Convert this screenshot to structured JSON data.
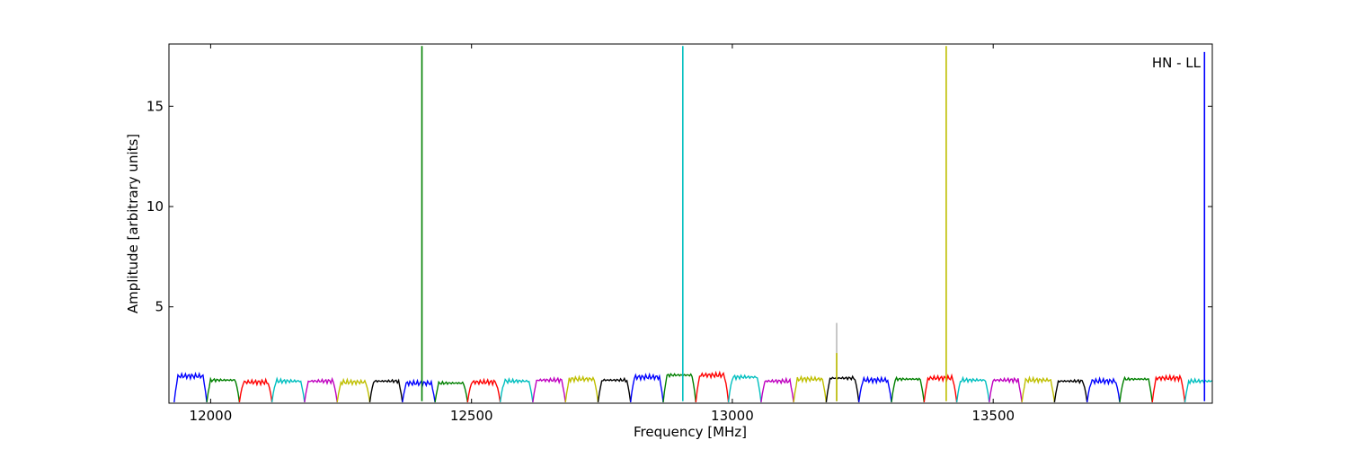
{
  "chart_data": {
    "type": "line",
    "title": "",
    "xlabel": "Frequency [MHz]",
    "ylabel": "Amplitude [arbitrary units]",
    "xlim": [
      11920,
      13920
    ],
    "ylim": [
      0.2,
      18.1
    ],
    "xticks": [
      12000,
      12500,
      13000,
      13500
    ],
    "yticks": [
      5,
      10,
      15
    ],
    "grid": false,
    "legend": "none",
    "annotation": "HN - LL",
    "band_width_mhz": 62.5,
    "band_colors": [
      "#0000ff",
      "#008000",
      "#ff0000",
      "#00bfbf",
      "#bf00bf",
      "#bfbf00",
      "#000000"
    ],
    "band_peaks": [
      1.55,
      1.35,
      1.25,
      1.3,
      1.3,
      1.25,
      1.3,
      1.2,
      1.2,
      1.25,
      1.3,
      1.35,
      1.4,
      1.35,
      1.5,
      1.6,
      1.6,
      1.5,
      1.3,
      1.4,
      1.45,
      1.35,
      1.4,
      1.45,
      1.35,
      1.35,
      1.35,
      1.3,
      1.3,
      1.4,
      1.45,
      1.3,
      1.45,
      1.5,
      1.4,
      1.3,
      1.35,
      1.35,
      1.4,
      1.3,
      1.3,
      1.35,
      1.3,
      1.35,
      1.4,
      1.5,
      1.5,
      1.45,
      1.45,
      1.45,
      1.4,
      1.4,
      1.35,
      1.35,
      1.3,
      1.35,
      1.3,
      1.35,
      1.4,
      1.45,
      1.45,
      1.45,
      1.35,
      1.35,
      1.4,
      1.4,
      1.4,
      1.3,
      1.35,
      1.5,
      1.35,
      1.3,
      1.35,
      1.5
    ],
    "spikes": [
      {
        "x": 12405,
        "y": 18.0,
        "color": "#008000"
      },
      {
        "x": 12905,
        "y": 18.0,
        "color": "#00bfbf"
      },
      {
        "x": 13200,
        "y": 4.2,
        "color": "#bbbbbb"
      },
      {
        "x": 13200,
        "y": 2.7,
        "color": "#bfbf00"
      },
      {
        "x": 13410,
        "y": 18.0,
        "color": "#bfbf00"
      },
      {
        "x": 13905,
        "y": 17.7,
        "color": "#0000ff"
      }
    ]
  }
}
